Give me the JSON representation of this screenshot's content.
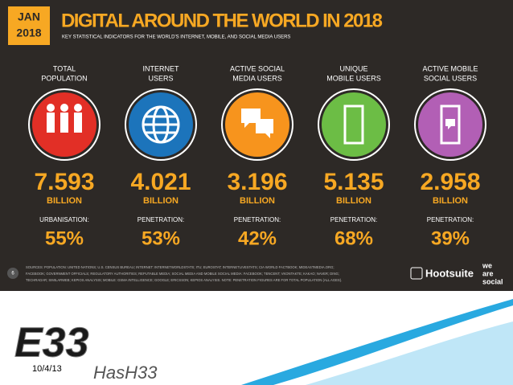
{
  "header": {
    "month": "JAN",
    "year": "2018",
    "title": "DIGITAL AROUND THE WORLD IN 2018",
    "subtitle": "KEY STATISTICAL INDICATORS FOR THE WORLD'S INTERNET, MOBILE, AND SOCIAL MEDIA USERS"
  },
  "indicators": [
    {
      "label": [
        "TOTAL",
        "POPULATION"
      ],
      "value": "7.593",
      "unit": "BILLION",
      "metric_label": "URBANISATION:",
      "metric_value": "55%"
    },
    {
      "label": [
        "INTERNET",
        "USERS"
      ],
      "value": "4.021",
      "unit": "BILLION",
      "metric_label": "PENETRATION:",
      "metric_value": "53%"
    },
    {
      "label": [
        "ACTIVE SOCIAL",
        "MEDIA USERS"
      ],
      "value": "3.196",
      "unit": "BILLION",
      "metric_label": "PENETRATION:",
      "metric_value": "42%"
    },
    {
      "label": [
        "UNIQUE",
        "MOBILE USERS"
      ],
      "value": "5.135",
      "unit": "BILLION",
      "metric_label": "PENETRATION:",
      "metric_value": "68%"
    },
    {
      "label": [
        "ACTIVE MOBILE",
        "SOCIAL USERS"
      ],
      "value": "2.958",
      "unit": "BILLION",
      "metric_label": "PENETRATION:",
      "metric_value": "39%"
    }
  ],
  "footer": {
    "page": "6",
    "sources": [
      "SOURCES: POPULATION: UNITED NATIONS; U.S. CENSUS BUREAU; INTERNET: INTERNETWORLDSTATS; ITU; EUROSTAT; INTERNETLIVESTATS; CIA WORLD FACTBOOK; MIDEASTMEDIA.ORG;",
      "FACEBOOK; GOVERNMENT OFFICIALS; REGULATORY AUTHORITIES; REPUTABLE MEDIA; SOCIAL MEDIA AND MOBILE SOCIAL MEDIA: FACEBOOK; TENCENT; VKONTAKTE; KAKAO; NAVER; DING;",
      "TECHRADAR; SIMILARWEB; KEPIOS ANALYSIS; MOBILE: GSMA INTELLIGENCE; GOOGLE; ERICSSON; KEPIOS ANALYSIS. NOTE: PENETRATION FIGURES ARE FOR TOTAL POPULATION (ALL AGES)."
    ],
    "brand": "Hootsuite",
    "partner": [
      "we",
      "are",
      "social"
    ]
  },
  "slide": {
    "date": "10/4/13",
    "logo_mark": "E33",
    "logo_text": "HasH33"
  }
}
